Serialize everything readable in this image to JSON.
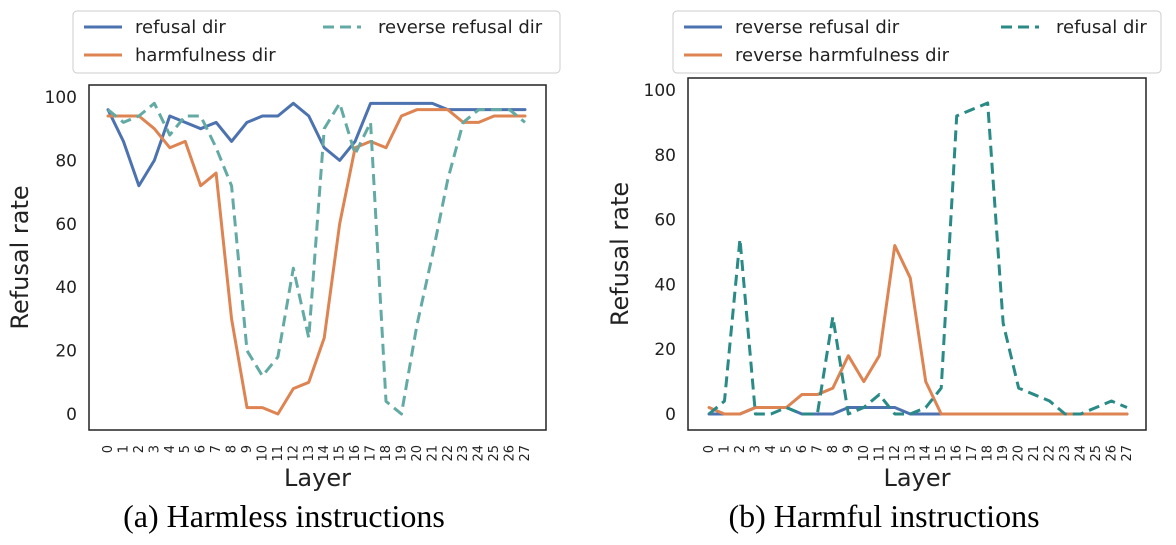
{
  "chart_data": [
    {
      "type": "line",
      "title": "",
      "caption": "(a) Harmless instructions",
      "xlabel": "Layer",
      "ylabel": "Refusal rate",
      "ylim": [
        0,
        100
      ],
      "yticks": [
        0,
        20,
        40,
        60,
        80,
        100
      ],
      "categories": [
        "0",
        "1",
        "2",
        "3",
        "4",
        "5",
        "6",
        "7",
        "8",
        "9",
        "10",
        "11",
        "12",
        "13",
        "14",
        "15",
        "16",
        "17",
        "18",
        "19",
        "20",
        "21",
        "22",
        "23",
        "24",
        "25",
        "26",
        "27"
      ],
      "legend_position": "top",
      "series": [
        {
          "name": "refusal dir",
          "style": "solid",
          "color": "#4c72b0",
          "values": [
            96,
            86,
            72,
            80,
            94,
            92,
            90,
            92,
            86,
            92,
            94,
            94,
            98,
            94,
            84,
            80,
            86,
            98,
            98,
            98,
            98,
            98,
            96,
            96,
            96,
            96,
            96,
            96
          ]
        },
        {
          "name": "harmfulness dir",
          "style": "solid",
          "color": "#dd8452",
          "values": [
            94,
            94,
            94,
            90,
            84,
            86,
            72,
            76,
            30,
            2,
            2,
            0,
            8,
            10,
            24,
            60,
            84,
            86,
            84,
            94,
            96,
            96,
            96,
            92,
            92,
            94,
            94,
            94
          ]
        },
        {
          "name": "reverse refusal dir",
          "style": "dashed",
          "color": "#64aaa4",
          "values": [
            96,
            92,
            94,
            98,
            88,
            94,
            94,
            84,
            72,
            20,
            12,
            18,
            46,
            24,
            90,
            98,
            82,
            92,
            4,
            0,
            28,
            50,
            74,
            92,
            96,
            96,
            96,
            92
          ]
        }
      ]
    },
    {
      "type": "line",
      "title": "",
      "caption": "(b) Harmful instructions",
      "xlabel": "Layer",
      "ylabel": "Refusal rate",
      "ylim": [
        0,
        100
      ],
      "yticks": [
        0,
        20,
        40,
        60,
        80,
        100
      ],
      "categories": [
        "0",
        "1",
        "2",
        "3",
        "4",
        "5",
        "6",
        "7",
        "8",
        "9",
        "10",
        "11",
        "12",
        "13",
        "14",
        "15",
        "16",
        "17",
        "18",
        "19",
        "20",
        "21",
        "22",
        "23",
        "24",
        "25",
        "26",
        "27"
      ],
      "legend_position": "top",
      "series": [
        {
          "name": "reverse refusal dir",
          "style": "solid",
          "color": "#4c72b0",
          "values": [
            0,
            0,
            0,
            2,
            2,
            2,
            0,
            0,
            0,
            2,
            2,
            2,
            2,
            0,
            0,
            0,
            0,
            0,
            0,
            0,
            0,
            0,
            0,
            0,
            0,
            0,
            0,
            0
          ]
        },
        {
          "name": "reverse harmfulness dir",
          "style": "solid",
          "color": "#dd8452",
          "values": [
            2,
            0,
            0,
            2,
            2,
            2,
            6,
            6,
            8,
            18,
            10,
            18,
            52,
            42,
            10,
            0,
            0,
            0,
            0,
            0,
            0,
            0,
            0,
            0,
            0,
            0,
            0,
            0
          ]
        },
        {
          "name": "refusal dir",
          "style": "dashed",
          "color": "#2a8a86",
          "values": [
            0,
            4,
            54,
            0,
            0,
            2,
            0,
            0,
            30,
            0,
            2,
            6,
            0,
            0,
            2,
            8,
            92,
            94,
            96,
            28,
            8,
            6,
            4,
            0,
            0,
            2,
            4,
            2
          ]
        }
      ]
    }
  ]
}
